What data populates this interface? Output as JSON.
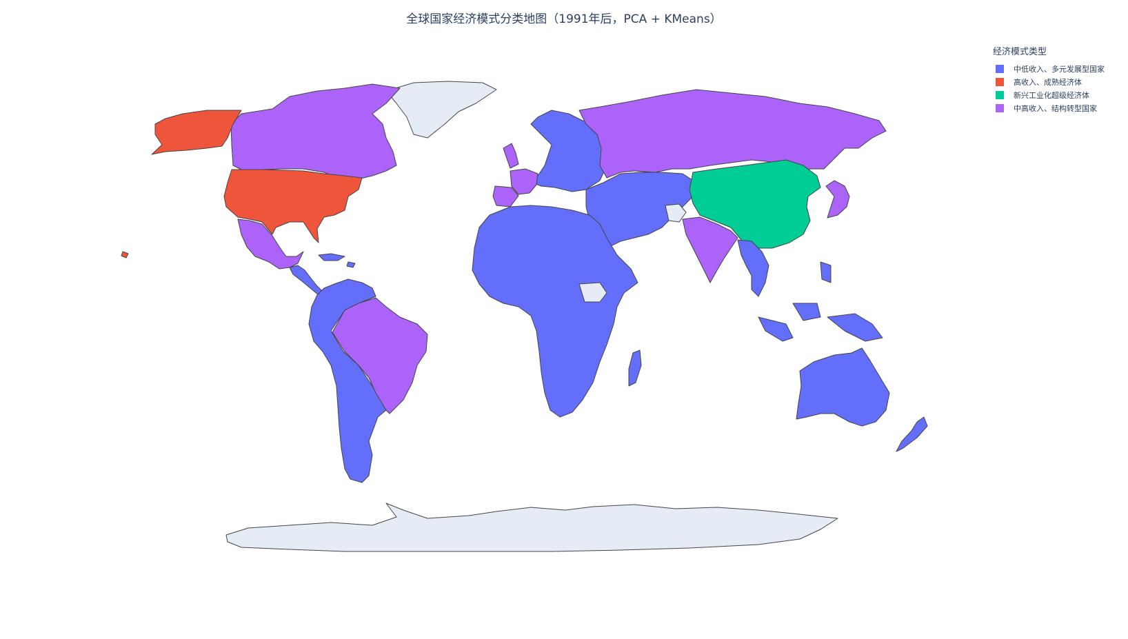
{
  "title": "全球国家经济模式分类地图（1991年后，PCA + KMeans）",
  "legend": {
    "title": "经济模式类型",
    "items": [
      {
        "label": "中低收入、多元发展型国家",
        "color": "#636efa"
      },
      {
        "label": "高收入、成熟经济体",
        "color": "#ef553b"
      },
      {
        "label": "新兴工业化超级经济体",
        "color": "#00cc96"
      },
      {
        "label": "中高收入、结构转型国家",
        "color": "#ab63fa"
      }
    ]
  },
  "no_data_color": "#e5ecf6",
  "regions": [
    {
      "name": "United States",
      "category": 1
    },
    {
      "name": "Alaska",
      "category": 1
    },
    {
      "name": "Hawaii",
      "category": 1
    },
    {
      "name": "Canada",
      "category": 3
    },
    {
      "name": "Mexico",
      "category": 3
    },
    {
      "name": "Brazil",
      "category": 3
    },
    {
      "name": "Russia",
      "category": 3
    },
    {
      "name": "India",
      "category": 3
    },
    {
      "name": "Japan",
      "category": 3
    },
    {
      "name": "France",
      "category": 3
    },
    {
      "name": "United Kingdom",
      "category": 3
    },
    {
      "name": "China",
      "category": 2
    },
    {
      "name": "Africa",
      "category": 0
    },
    {
      "name": "Middle East & Central Asia",
      "category": 0
    },
    {
      "name": "Europe (other)",
      "category": 0
    },
    {
      "name": "South America (other)",
      "category": 0
    },
    {
      "name": "Central America",
      "category": 0
    },
    {
      "name": "Southeast Asia",
      "category": 0
    },
    {
      "name": "Australia",
      "category": 0
    },
    {
      "name": "New Zealand",
      "category": 0
    },
    {
      "name": "Greenland",
      "category": null
    },
    {
      "name": "Antarctica",
      "category": null
    },
    {
      "name": "Afghanistan",
      "category": null
    },
    {
      "name": "South Sudan",
      "category": null
    }
  ]
}
